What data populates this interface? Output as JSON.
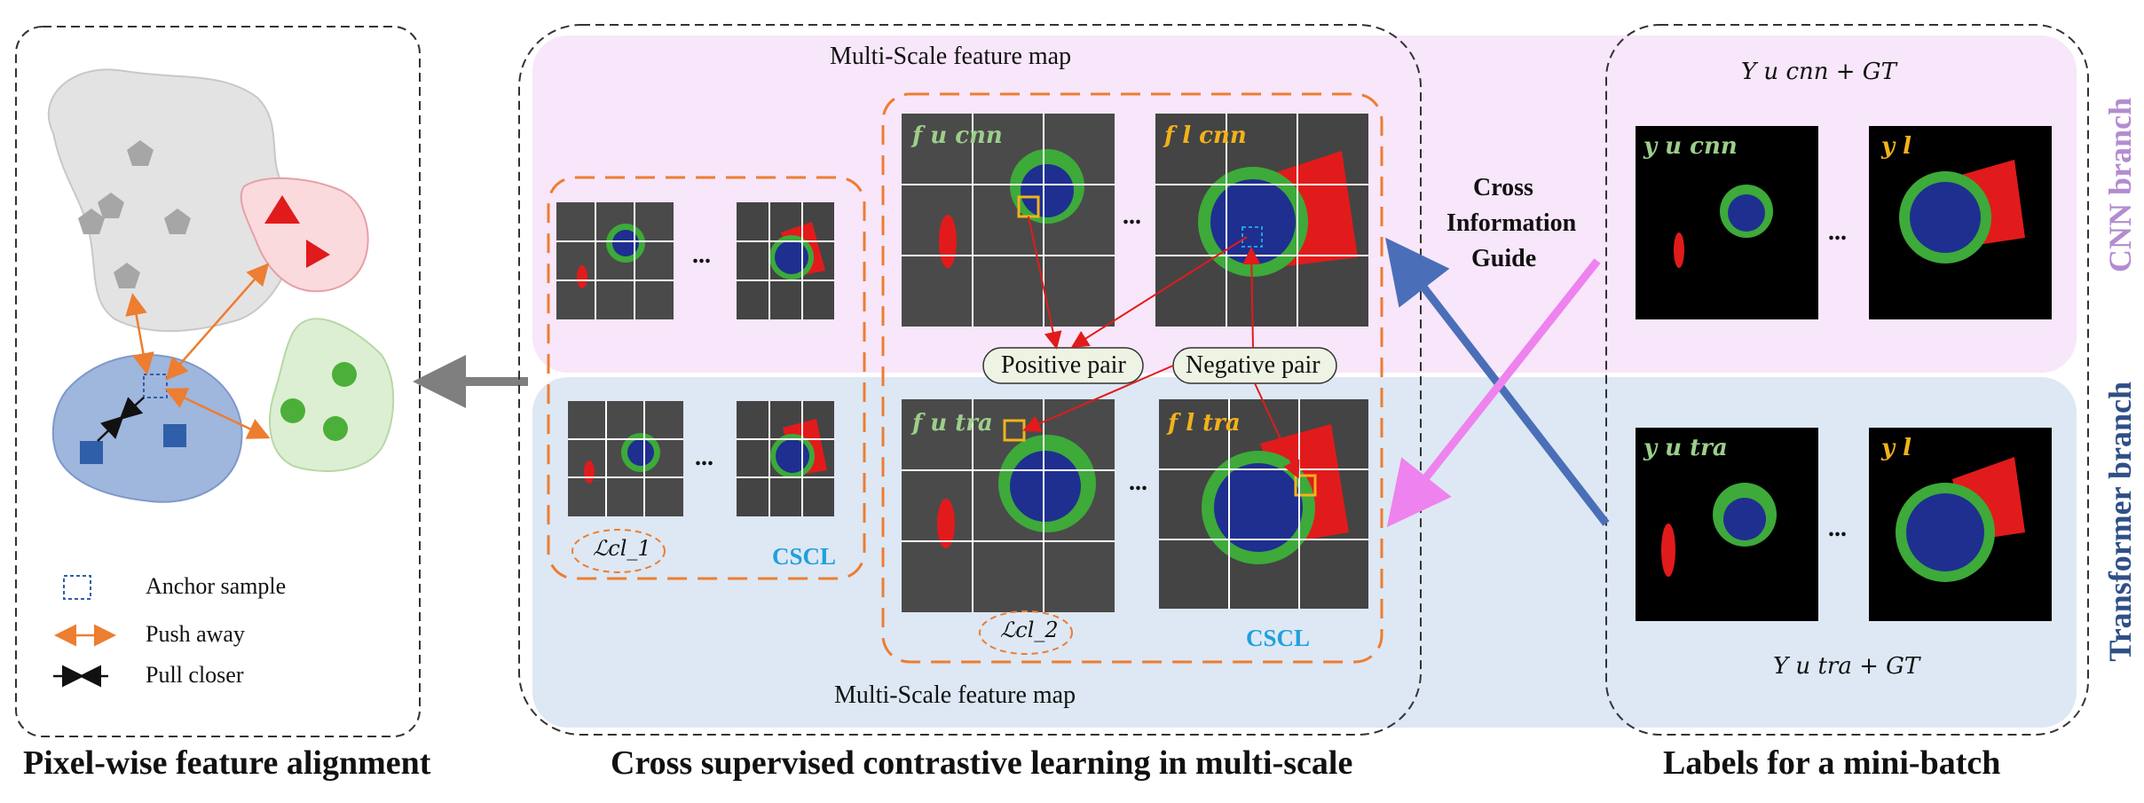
{
  "panels": {
    "left_caption": "Pixel-wise feature alignment",
    "center_caption": "Cross supervised  contrastive learning in multi-scale",
    "right_caption": "Labels for a mini-batch"
  },
  "center": {
    "top_label": "Multi-Scale feature map",
    "bottom_label": "Multi-Scale feature map",
    "ellipsis": "...",
    "positive_pair": "Positive pair",
    "negative_pair": "Negative pair",
    "cscl_left": "CSCL",
    "cscl_right": "CSCL",
    "loss_1": "ℒcl_1",
    "loss_2": "ℒcl_2",
    "f_cnn_u": "f u cnn",
    "f_cnn_l": "f l cnn",
    "f_tra_u": "f u tra",
    "f_tra_l": "f l tra"
  },
  "guide": {
    "line1": "Cross",
    "line2": "Information",
    "line3": "Guide"
  },
  "right": {
    "top_title": "Y u cnn + GT",
    "bottom_title": "Y u tra + GT",
    "y_cnn_u": "y u cnn",
    "y_l_top": "y l",
    "y_tra_u": "y u tra",
    "y_l_bottom": "y l",
    "ellipsis": "..."
  },
  "side_labels": {
    "cnn": "CNN branch",
    "transformer": "Transformer branch"
  },
  "legend": {
    "anchor": "Anchor sample",
    "push": "Push away",
    "pull": "Pull closer"
  },
  "colors": {
    "cnn_band": "#f8e6fa",
    "transformer_band": "#dde8f4",
    "gray_cluster": "#e3e3e3",
    "red_cluster": "#fadadd",
    "green_cluster": "#dcefd2",
    "blue_cluster": "#9fb6dd",
    "orange_arrow": "#ed7d31",
    "blue_arrow": "#4a6fb8",
    "pink_arrow": "#ee82ee",
    "seg_red": "#e11b1b",
    "seg_green": "#3daa3a",
    "seg_blue": "#1f2f8f",
    "cnn_text": "#b48bd0",
    "transformer_text": "#2f4f87",
    "label_yellow": "#f2b21b",
    "label_green": "#9ccf8a"
  }
}
